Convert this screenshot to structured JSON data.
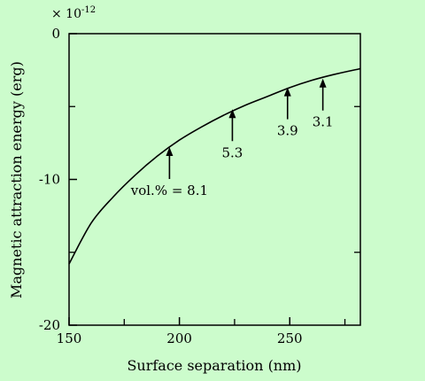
{
  "chart_data": {
    "type": "line",
    "xlabel": "Surface separation (nm)",
    "ylabel": "Magnetic attraction energy (erg)",
    "y_multiplier": "× 10",
    "y_multiplier_exp": "-12",
    "xlim": [
      150,
      282
    ],
    "ylim": [
      -20,
      0
    ],
    "x_major_ticks": [
      150,
      200,
      250
    ],
    "x_tick_labels": [
      "150",
      "200",
      "250"
    ],
    "x_minor_ticks": [
      175,
      225,
      275
    ],
    "y_major_ticks": [
      0,
      -10,
      -20
    ],
    "y_tick_labels": [
      "0",
      "-10",
      "-20"
    ],
    "y_minor_ticks": [
      -5,
      -15
    ],
    "grid": false,
    "series": [
      {
        "x": [
          150,
          160,
          170,
          180,
          190,
          200,
          210,
          220,
          230,
          240,
          250,
          260,
          270,
          282
        ],
        "y": [
          -15.8,
          -13.0,
          -11.2,
          -9.7,
          -8.4,
          -7.3,
          -6.4,
          -5.6,
          -4.9,
          -4.3,
          -3.7,
          -3.2,
          -2.8,
          -2.4
        ]
      }
    ],
    "annotations": [
      {
        "text": "vol.% = 8.1",
        "x": 195.5,
        "y": -7.6
      },
      {
        "text": "5.3",
        "x": 224,
        "y": -5.0
      },
      {
        "text": "3.9",
        "x": 249,
        "y": -3.5
      },
      {
        "text": "3.1",
        "x": 265,
        "y": -2.9
      }
    ]
  }
}
